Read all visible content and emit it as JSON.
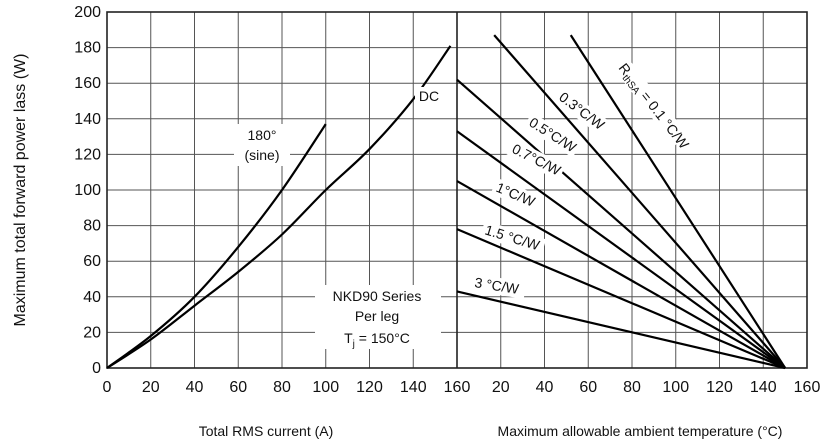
{
  "chart_data": [
    {
      "type": "line",
      "xlabel": "Total RMS current (A)",
      "ylabel": "Maximum total forward power lass (W)",
      "xlim": [
        0,
        160
      ],
      "ylim": [
        0,
        200
      ],
      "x_ticks": [
        "0",
        "20",
        "40",
        "60",
        "80",
        "100",
        "120",
        "140",
        "160"
      ],
      "y_ticks": [
        "0",
        "20",
        "40",
        "60",
        "80",
        "100",
        "120",
        "140",
        "160",
        "180",
        "200"
      ],
      "grid": true,
      "series": [
        {
          "name": "180° (sine)",
          "label_lines": [
            "180°",
            "(sine)"
          ],
          "x": [
            0,
            20,
            40,
            60,
            80,
            100
          ],
          "y": [
            0,
            18,
            40,
            68,
            100,
            137
          ]
        },
        {
          "name": "DC",
          "label_lines": [
            "DC"
          ],
          "x": [
            0,
            20,
            40,
            60,
            80,
            100,
            120,
            140,
            157
          ],
          "y": [
            0,
            16,
            35,
            54,
            75,
            100,
            123,
            151,
            181
          ]
        }
      ],
      "annotation": {
        "lines": [
          "NKD90 Series",
          "Per leg"
        ],
        "tj_prefix": "T",
        "tj_sub": "j",
        "tj_suffix": " = 150°C"
      }
    },
    {
      "type": "line",
      "xlabel": "Maximum allowable ambient temperature (°C)",
      "xlim": [
        0,
        160
      ],
      "ylim": [
        0,
        200
      ],
      "x_ticks": [
        "20",
        "40",
        "60",
        "80",
        "100",
        "120",
        "140",
        "160"
      ],
      "grid": true,
      "series": [
        {
          "name": "RthSA = 0.1 °C/W",
          "x": [
            52,
            150
          ],
          "y": [
            187,
            0
          ]
        },
        {
          "name": "0.3°C/W",
          "x": [
            17,
            150
          ],
          "y": [
            187,
            0
          ]
        },
        {
          "name": "0.5°C/W",
          "x": [
            0,
            150
          ],
          "y": [
            162,
            0
          ]
        },
        {
          "name": "0.7°C/W",
          "x": [
            0,
            150
          ],
          "y": [
            133,
            0
          ]
        },
        {
          "name": "1°C/W",
          "x": [
            0,
            150
          ],
          "y": [
            105,
            0
          ]
        },
        {
          "name": "1.5 °C/W",
          "x": [
            0,
            150
          ],
          "y": [
            78,
            0
          ]
        },
        {
          "name": "3 °C/W",
          "x": [
            0,
            150
          ],
          "y": [
            43,
            0
          ]
        }
      ],
      "labels": {
        "rth_pre": "R",
        "rth_sub": "thSA",
        "rth_post": " = 0.1 °C/W",
        "r03": "0.3°C/W",
        "r05": "0.5°C/W",
        "r07": "0.7°C/W",
        "r1": "1°C/W",
        "r15": "1.5 °C/W",
        "r3": "3 °C/W"
      }
    }
  ]
}
